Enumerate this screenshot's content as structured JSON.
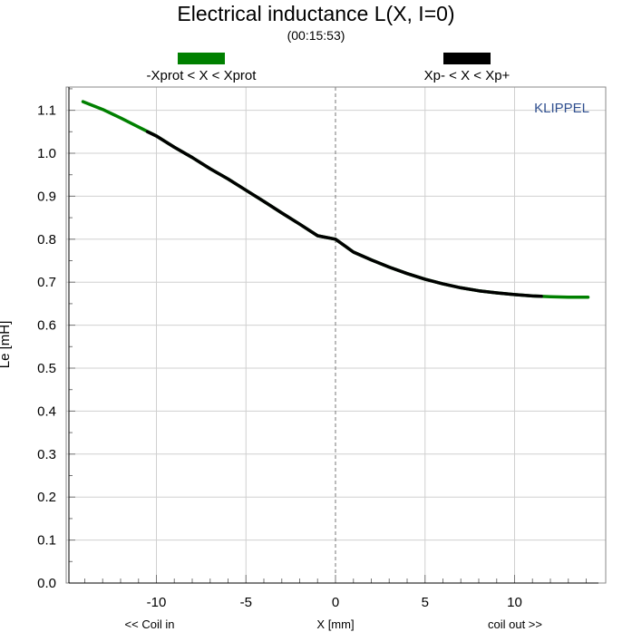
{
  "chart_data": {
    "type": "line",
    "title": "Electrical inductance L(X, I=0)",
    "subtitle": "(00:15:53)",
    "watermark": "KLIPPEL",
    "watermark_color": "#2f4f8f",
    "xlabel": "X [mm]",
    "xlabel_left": "<< Coil in",
    "xlabel_right": "coil out >>",
    "ylabel": "Le [mH]",
    "xlim": [
      -15,
      15
    ],
    "ylim": [
      0,
      1.15
    ],
    "x_ticks": [
      -10,
      -5,
      0,
      5,
      10
    ],
    "y_ticks": [
      0.0,
      0.1,
      0.2,
      0.3,
      0.4,
      0.5,
      0.6,
      0.7,
      0.8,
      0.9,
      1.0,
      1.1
    ],
    "y_tick_labels": [
      "0.0",
      "0.1",
      "0.2",
      "0.3",
      "0.4",
      "0.5",
      "0.6",
      "0.7",
      "0.8",
      "0.9",
      "1.0",
      "1.1"
    ],
    "grid": true,
    "zero_line": "dashed",
    "legend_position": "top",
    "series": [
      {
        "name": "-Xprot < X < Xprot",
        "color": "#008000",
        "x": [
          -14.1,
          -13,
          -12,
          -11,
          -10,
          -9,
          -8,
          -7,
          -6,
          -5,
          -4,
          -3,
          -2,
          -1,
          0,
          1,
          2,
          3,
          4,
          5,
          6,
          7,
          8,
          9,
          10,
          11,
          12,
          13,
          14.1
        ],
        "y": [
          1.12,
          1.102,
          1.082,
          1.061,
          1.04,
          1.014,
          0.99,
          0.964,
          0.94,
          0.914,
          0.888,
          0.861,
          0.835,
          0.808,
          0.8,
          0.77,
          0.752,
          0.735,
          0.72,
          0.707,
          0.696,
          0.687,
          0.68,
          0.675,
          0.671,
          0.668,
          0.666,
          0.665,
          0.665
        ]
      },
      {
        "name": "Xp- < X < Xp+",
        "color": "#000000",
        "x": [
          -10.5,
          -10,
          -9,
          -8,
          -7,
          -6,
          -5,
          -4,
          -3,
          -2,
          -1,
          0,
          1,
          2,
          3,
          4,
          5,
          6,
          7,
          8,
          9,
          10,
          11,
          11.5
        ],
        "y": [
          1.05,
          1.04,
          1.014,
          0.99,
          0.964,
          0.94,
          0.914,
          0.888,
          0.861,
          0.835,
          0.808,
          0.8,
          0.77,
          0.752,
          0.735,
          0.72,
          0.707,
          0.696,
          0.687,
          0.68,
          0.675,
          0.671,
          0.668,
          0.667
        ]
      }
    ]
  }
}
